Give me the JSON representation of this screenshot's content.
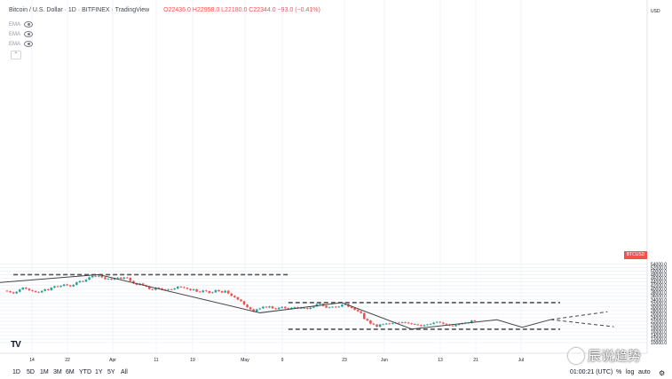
{
  "header": {
    "symbol": "Bitcoin / U.S. Dollar · 1D · BITFINEX · TradingView",
    "ohlc": "O22436.0  H22958.0  L22180.0  C22344.0  −93.0 (−0.41%)"
  },
  "indicators": [
    {
      "label": "EMA"
    },
    {
      "label": "EMA"
    },
    {
      "label": "EMA"
    }
  ],
  "price_axis": {
    "currency": "USD",
    "ticks": [
      "54000.0",
      "52000.0",
      "50000.0",
      "48000.0",
      "46000.0",
      "44000.0",
      "42000.0",
      "40000.0",
      "38000.0",
      "36000.0",
      "34000.0",
      "32000.0",
      "30000.0",
      "28000.0",
      "26000.0",
      "24000.0",
      "22000.0",
      "20000.0",
      "18000.0",
      "16000.0",
      "14000.0",
      "12000.0",
      "10000.0"
    ],
    "last_price_label": "BTCUSD"
  },
  "time_axis": {
    "labels": [
      "14",
      "22",
      "Apr",
      "11",
      "19",
      "May",
      "9",
      "23",
      "Jun",
      "13",
      "21",
      "Jul"
    ]
  },
  "bottom_bar": {
    "periods": [
      "1D",
      "5D",
      "1M",
      "3M",
      "6M",
      "YTD",
      "1Y",
      "5Y",
      "All"
    ],
    "clock": "01:00:21 (UTC)",
    "percent": "%",
    "log": "log",
    "auto": "auto"
  },
  "watermark": {
    "text": "辰说趋势"
  },
  "colors": {
    "up": "#26a69a",
    "down": "#ef5350",
    "line": "#444444",
    "dash": "#555555"
  },
  "chart_data": {
    "type": "candlestick",
    "ylim": [
      9000,
      55500
    ],
    "candles": [
      {
        "o": 39100,
        "c": 38800
      },
      {
        "o": 38800,
        "c": 38200
      },
      {
        "o": 38200,
        "c": 37600
      },
      {
        "o": 37600,
        "c": 38500
      },
      {
        "o": 38500,
        "c": 39800
      },
      {
        "o": 39800,
        "c": 40800
      },
      {
        "o": 40800,
        "c": 40200
      },
      {
        "o": 40200,
        "c": 39300
      },
      {
        "o": 39300,
        "c": 38900
      },
      {
        "o": 38900,
        "c": 38400
      },
      {
        "o": 38400,
        "c": 38200
      },
      {
        "o": 38200,
        "c": 39000
      },
      {
        "o": 39000,
        "c": 39900
      },
      {
        "o": 39900,
        "c": 39400
      },
      {
        "o": 39400,
        "c": 40800
      },
      {
        "o": 40800,
        "c": 41600
      },
      {
        "o": 41600,
        "c": 41200
      },
      {
        "o": 41200,
        "c": 41800
      },
      {
        "o": 41800,
        "c": 42600
      },
      {
        "o": 42600,
        "c": 42100
      },
      {
        "o": 42100,
        "c": 41500
      },
      {
        "o": 41500,
        "c": 42400
      },
      {
        "o": 42400,
        "c": 43800
      },
      {
        "o": 43800,
        "c": 44500
      },
      {
        "o": 44500,
        "c": 44200
      },
      {
        "o": 44200,
        "c": 45300
      },
      {
        "o": 45300,
        "c": 46600
      },
      {
        "o": 46600,
        "c": 47400
      },
      {
        "o": 47400,
        "c": 47000
      },
      {
        "o": 47000,
        "c": 47500
      },
      {
        "o": 47500,
        "c": 46600
      },
      {
        "o": 46600,
        "c": 45600
      },
      {
        "o": 45600,
        "c": 45800
      },
      {
        "o": 45800,
        "c": 45300
      },
      {
        "o": 45300,
        "c": 46100
      },
      {
        "o": 46100,
        "c": 46400
      },
      {
        "o": 46400,
        "c": 45800
      },
      {
        "o": 45800,
        "c": 46500
      },
      {
        "o": 46500,
        "c": 46300
      },
      {
        "o": 46300,
        "c": 44500
      },
      {
        "o": 44500,
        "c": 43200
      },
      {
        "o": 43200,
        "c": 42400
      },
      {
        "o": 42400,
        "c": 43100
      },
      {
        "o": 43100,
        "c": 42200
      },
      {
        "o": 42200,
        "c": 41500
      },
      {
        "o": 41500,
        "c": 40000
      },
      {
        "o": 40000,
        "c": 39600
      },
      {
        "o": 39600,
        "c": 40800
      },
      {
        "o": 40800,
        "c": 40400
      },
      {
        "o": 40400,
        "c": 39800
      },
      {
        "o": 39800,
        "c": 39500
      },
      {
        "o": 39500,
        "c": 39900
      },
      {
        "o": 39900,
        "c": 39800
      },
      {
        "o": 39800,
        "c": 40300
      },
      {
        "o": 40300,
        "c": 41400
      },
      {
        "o": 41400,
        "c": 41100
      },
      {
        "o": 41100,
        "c": 40700
      },
      {
        "o": 40700,
        "c": 40100
      },
      {
        "o": 40100,
        "c": 39400
      },
      {
        "o": 39400,
        "c": 39900
      },
      {
        "o": 39900,
        "c": 38600
      },
      {
        "o": 38600,
        "c": 38300
      },
      {
        "o": 38300,
        "c": 39200
      },
      {
        "o": 39200,
        "c": 38800
      },
      {
        "o": 38800,
        "c": 37800
      },
      {
        "o": 37800,
        "c": 38200
      },
      {
        "o": 38200,
        "c": 39400
      },
      {
        "o": 39400,
        "c": 38800
      },
      {
        "o": 38800,
        "c": 38100
      },
      {
        "o": 38100,
        "c": 39100
      },
      {
        "o": 39100,
        "c": 37500
      },
      {
        "o": 37500,
        "c": 36200
      },
      {
        "o": 36200,
        "c": 35400
      },
      {
        "o": 35400,
        "c": 34100
      },
      {
        "o": 34100,
        "c": 33200
      },
      {
        "o": 33200,
        "c": 31300
      },
      {
        "o": 31300,
        "c": 29800
      },
      {
        "o": 29800,
        "c": 28700
      },
      {
        "o": 28700,
        "c": 27400
      },
      {
        "o": 27400,
        "c": 28700
      },
      {
        "o": 28700,
        "c": 29200
      },
      {
        "o": 29200,
        "c": 30100
      },
      {
        "o": 30100,
        "c": 29700
      },
      {
        "o": 29700,
        "c": 30300
      },
      {
        "o": 30300,
        "c": 29200
      },
      {
        "o": 29200,
        "c": 28800
      },
      {
        "o": 28800,
        "c": 29500
      },
      {
        "o": 29500,
        "c": 30000
      },
      {
        "o": 30000,
        "c": 29300
      },
      {
        "o": 29300,
        "c": 28900
      },
      {
        "o": 28900,
        "c": 29500
      },
      {
        "o": 29500,
        "c": 29800
      },
      {
        "o": 29800,
        "c": 29200
      },
      {
        "o": 29200,
        "c": 29400
      },
      {
        "o": 29400,
        "c": 29300
      },
      {
        "o": 29300,
        "c": 28900
      },
      {
        "o": 28900,
        "c": 29600
      },
      {
        "o": 29600,
        "c": 30300
      },
      {
        "o": 30300,
        "c": 31600
      },
      {
        "o": 31600,
        "c": 31800
      },
      {
        "o": 31800,
        "c": 30600
      },
      {
        "o": 30600,
        "c": 29600
      },
      {
        "o": 29600,
        "c": 29900
      },
      {
        "o": 29900,
        "c": 30100
      },
      {
        "o": 30100,
        "c": 29900
      },
      {
        "o": 29900,
        "c": 30200
      },
      {
        "o": 30200,
        "c": 31300
      },
      {
        "o": 31300,
        "c": 31500
      },
      {
        "o": 31500,
        "c": 30100
      },
      {
        "o": 30100,
        "c": 29400
      },
      {
        "o": 29400,
        "c": 28400
      },
      {
        "o": 28400,
        "c": 27500
      },
      {
        "o": 27500,
        "c": 26600
      },
      {
        "o": 26600,
        "c": 23300
      },
      {
        "o": 23300,
        "c": 22400
      },
      {
        "o": 22400,
        "c": 20600
      },
      {
        "o": 20600,
        "c": 20100
      },
      {
        "o": 20100,
        "c": 18900
      },
      {
        "o": 18900,
        "c": 20200
      },
      {
        "o": 20200,
        "c": 20300
      },
      {
        "o": 20300,
        "c": 20700
      },
      {
        "o": 20700,
        "c": 20500
      },
      {
        "o": 20500,
        "c": 20900
      },
      {
        "o": 20900,
        "c": 21200
      },
      {
        "o": 21200,
        "c": 21100
      },
      {
        "o": 21100,
        "c": 21400
      },
      {
        "o": 21400,
        "c": 21200
      },
      {
        "o": 21200,
        "c": 20800
      },
      {
        "o": 20800,
        "c": 20400
      },
      {
        "o": 20400,
        "c": 20200
      },
      {
        "o": 20200,
        "c": 19800
      },
      {
        "o": 19800,
        "c": 19300
      },
      {
        "o": 19300,
        "c": 19800
      },
      {
        "o": 19800,
        "c": 20200
      },
      {
        "o": 20200,
        "c": 20500
      },
      {
        "o": 20500,
        "c": 21200
      },
      {
        "o": 21200,
        "c": 21600
      },
      {
        "o": 21600,
        "c": 21200
      },
      {
        "o": 21200,
        "c": 20600
      },
      {
        "o": 20600,
        "c": 20200
      },
      {
        "o": 20200,
        "c": 19600
      },
      {
        "o": 19600,
        "c": 19200
      },
      {
        "o": 19200,
        "c": 19900
      },
      {
        "o": 19900,
        "c": 20400
      },
      {
        "o": 20400,
        "c": 20800
      },
      {
        "o": 20800,
        "c": 21200
      },
      {
        "o": 21200,
        "c": 21000
      },
      {
        "o": 21000,
        "c": 22400
      },
      {
        "o": 22400,
        "c": 22300
      }
    ],
    "zigzag": [
      {
        "i": -3,
        "p": 43600
      },
      {
        "i": 29,
        "p": 48100
      },
      {
        "i": 80,
        "p": 26700
      },
      {
        "i": 106,
        "p": 32400
      },
      {
        "i": 128,
        "p": 17600
      },
      {
        "i": 155,
        "p": 22800
      },
      {
        "i": 163,
        "p": 18600
      },
      {
        "i": 172,
        "p": 22900
      }
    ],
    "projections": [
      {
        "from": {
          "i": 172,
          "p": 22900
        },
        "to": {
          "i": 190,
          "p": 27300
        }
      },
      {
        "from": {
          "i": 172,
          "p": 22900
        },
        "to": {
          "i": 192,
          "p": 18900
        }
      }
    ],
    "levels": [
      {
        "value": 48100,
        "from": 2,
        "to": 89
      },
      {
        "value": 32400,
        "from": 89,
        "to": 175
      },
      {
        "value": 17500,
        "from": 89,
        "to": 175
      }
    ]
  }
}
